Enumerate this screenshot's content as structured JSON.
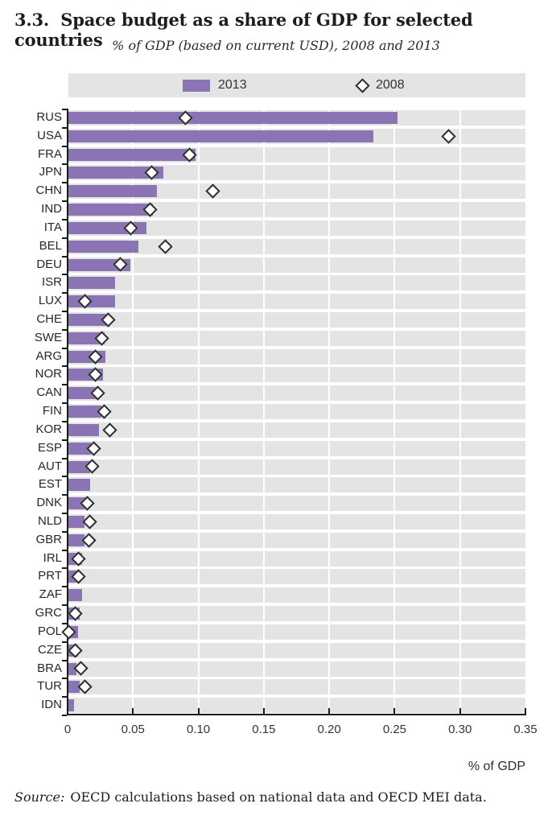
{
  "title": "3.3.  Space budget as a share of GDP for selected countries",
  "subtitle": "% of GDP (based on current USD), 2008 and 2013",
  "legend": {
    "background": "#E4E4E4",
    "items": [
      {
        "label": "2013",
        "marker": "bar-swatch"
      },
      {
        "label": "2008",
        "marker": "diamond"
      }
    ]
  },
  "source": {
    "label": "Source:",
    "text": "OECD calculations based on national data and OECD MEI data."
  },
  "colors": {
    "bar_2013": "#8A74B4",
    "row_band": "#E4E4E4",
    "diamond_fill": "#FFFFFF",
    "diamond_stroke": "#2E2E2E",
    "axis": "#1A1A1A"
  },
  "chart_data": {
    "type": "bar",
    "orientation": "horizontal",
    "title": "3.3. Space budget as a share of GDP for selected countries",
    "subtitle": "% of GDP (based on current USD), 2008 and 2013",
    "xlabel": "% of GDP",
    "xlim": [
      0,
      0.35
    ],
    "xticks": [
      0,
      0.05,
      0.1,
      0.15,
      0.2,
      0.25,
      0.3,
      0.35
    ],
    "xtick_labels": [
      "0",
      "0.05",
      "0.10",
      "0.15",
      "0.20",
      "0.25",
      "0.30",
      "0.35"
    ],
    "grid": "vertical-white-on-gray-bands",
    "legend_position": "top",
    "categories": [
      "RUS",
      "USA",
      "FRA",
      "JPN",
      "CHN",
      "IND",
      "ITA",
      "BEL",
      "DEU",
      "ISR",
      "LUX",
      "CHE",
      "SWE",
      "ARG",
      "NOR",
      "CAN",
      "FIN",
      "KOR",
      "ESP",
      "AUT",
      "EST",
      "DNK",
      "NLD",
      "GBR",
      "IRL",
      "PRT",
      "ZAF",
      "GRC",
      "POL",
      "CZE",
      "BRA",
      "TUR",
      "IDN"
    ],
    "series": [
      {
        "name": "2013",
        "style": "bar",
        "values": [
          0.252,
          0.234,
          0.098,
          0.073,
          0.068,
          0.065,
          0.06,
          0.054,
          0.048,
          0.036,
          0.036,
          0.03,
          0.028,
          0.029,
          0.027,
          0.022,
          0.026,
          0.024,
          0.018,
          0.017,
          0.017,
          0.014,
          0.013,
          0.013,
          0.011,
          0.01,
          0.011,
          0.009,
          0.008,
          0.008,
          0.007,
          0.009,
          0.005
        ]
      },
      {
        "name": "2008",
        "style": "diamond",
        "values": [
          0.09,
          0.291,
          0.093,
          0.064,
          0.111,
          0.063,
          0.048,
          0.075,
          0.04,
          null,
          0.013,
          0.031,
          0.026,
          0.021,
          0.021,
          0.023,
          0.028,
          0.032,
          0.02,
          0.019,
          null,
          0.015,
          0.017,
          0.016,
          0.008,
          0.008,
          null,
          0.006,
          0.001,
          0.006,
          0.01,
          0.013,
          null
        ]
      }
    ]
  }
}
